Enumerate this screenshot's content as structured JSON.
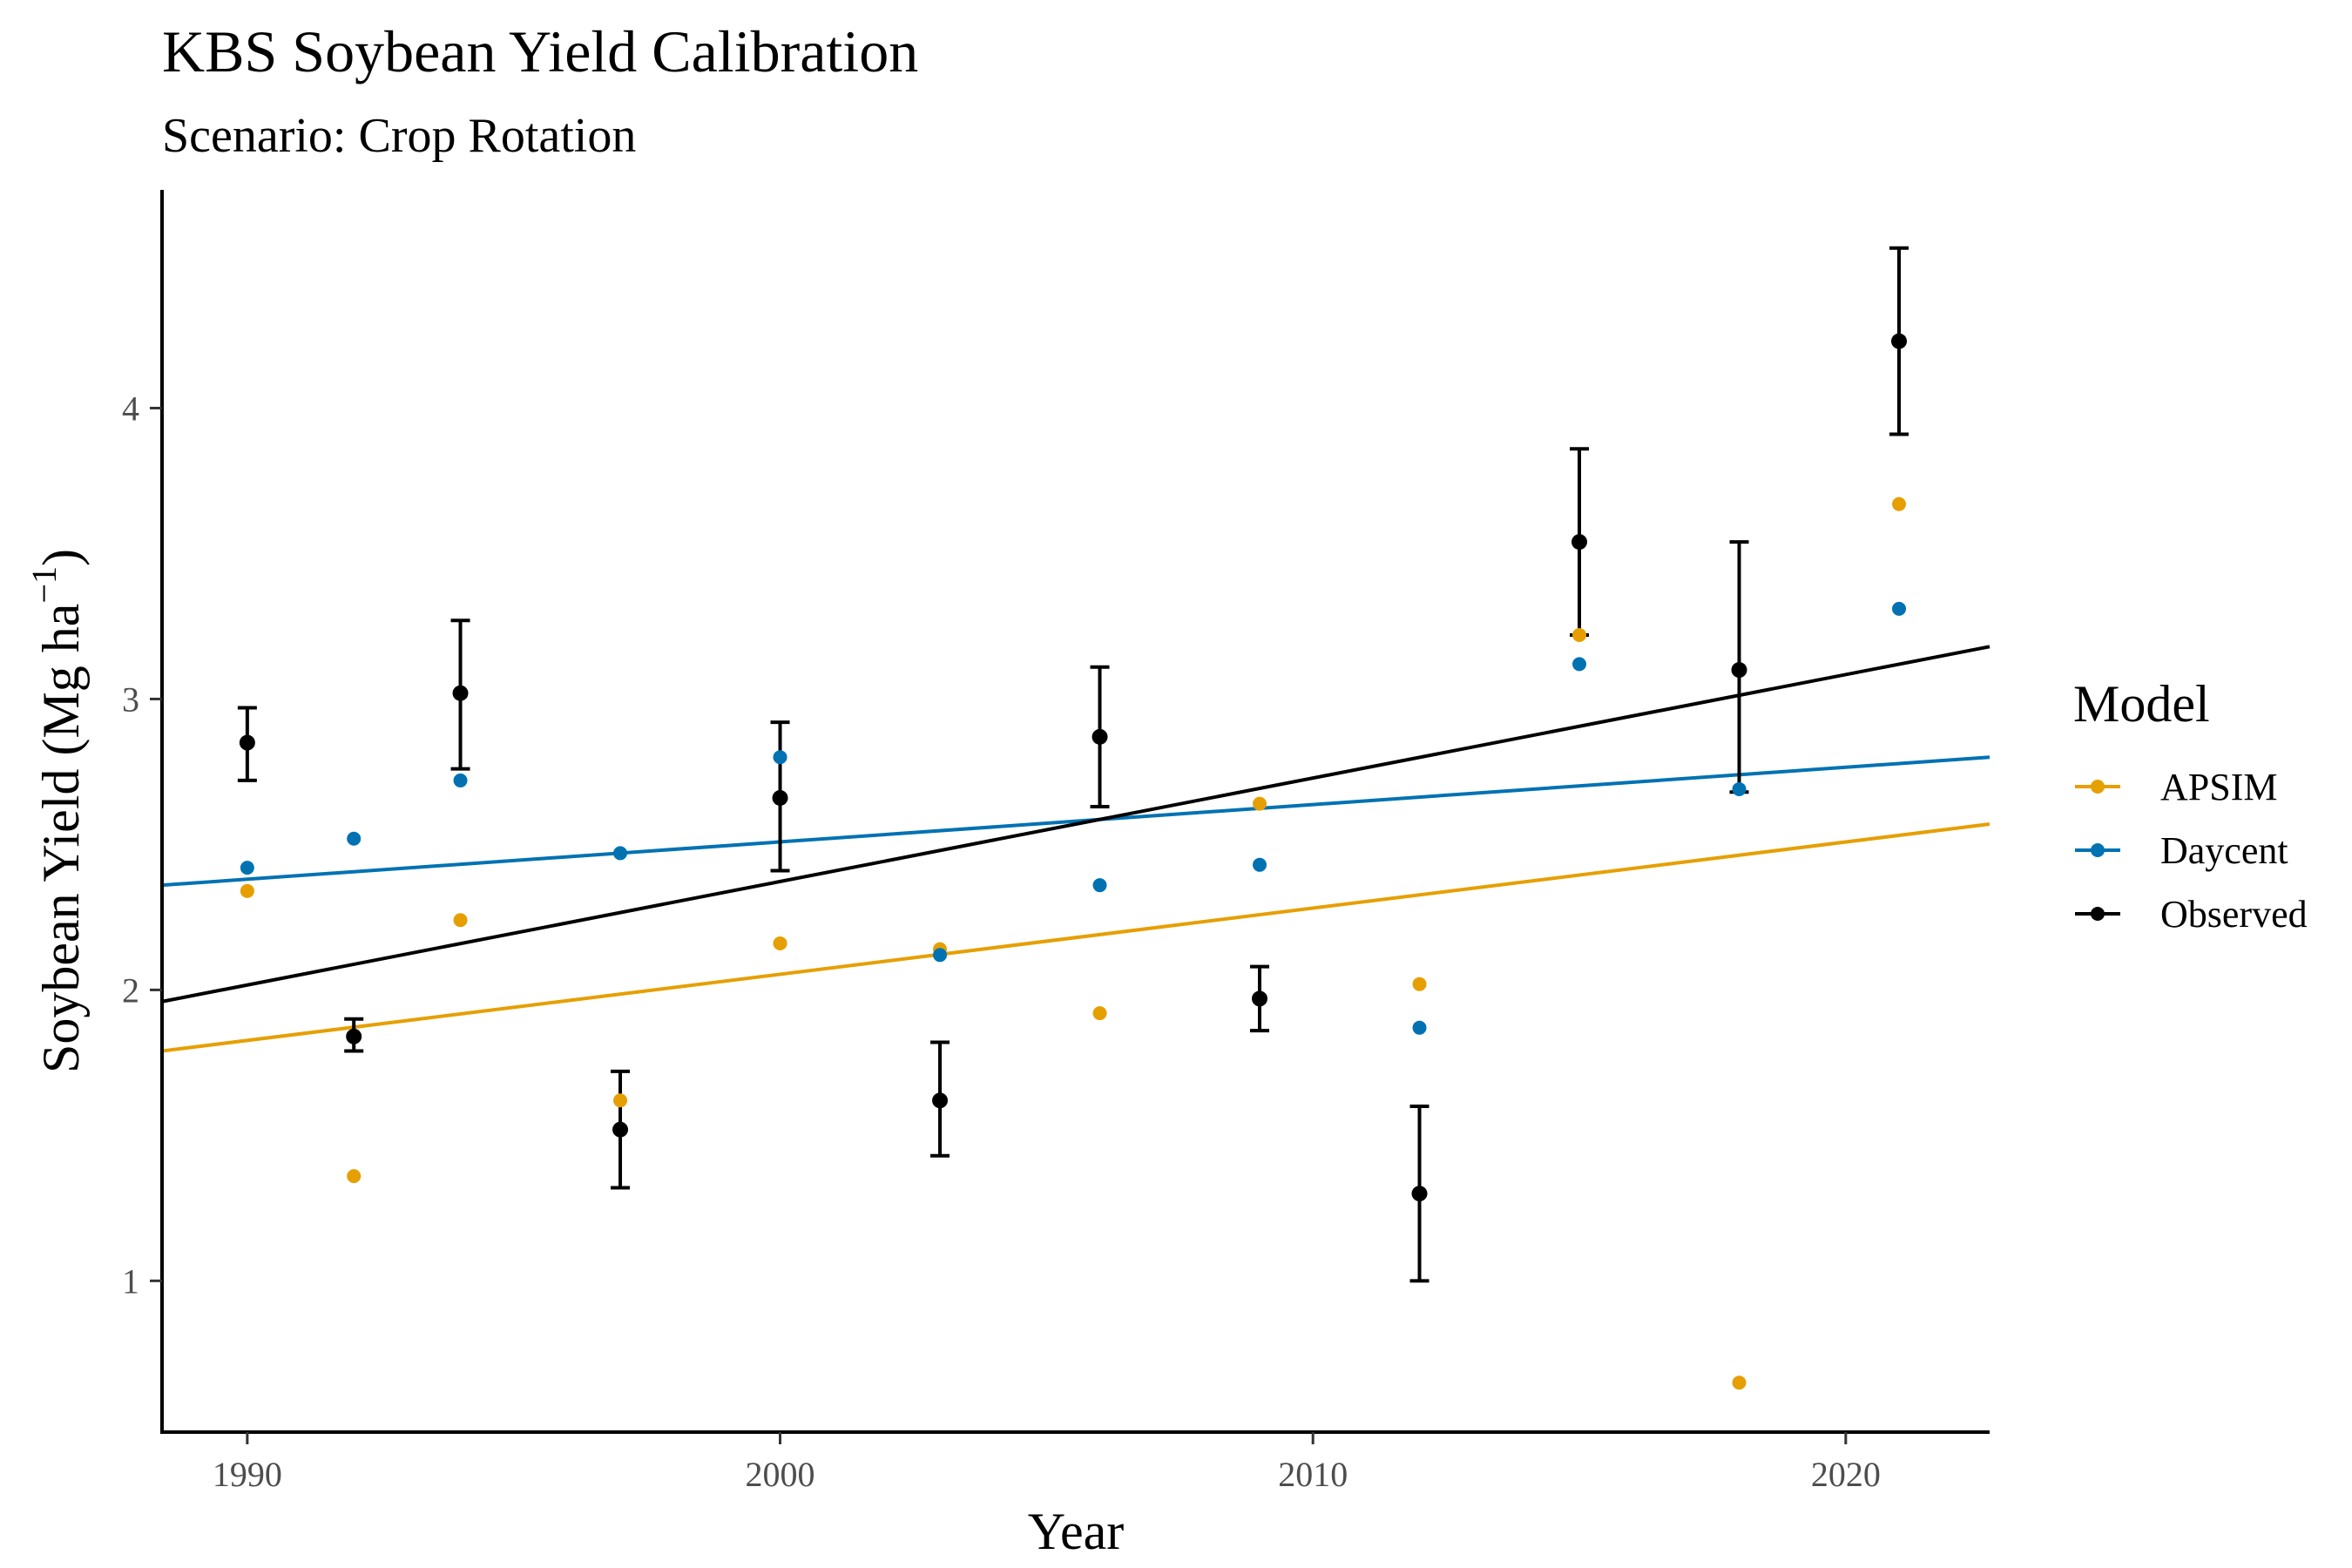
{
  "chart_data": {
    "type": "scatter",
    "title": "KBS Soybean Yield Calibration",
    "subtitle": "Scenario: Crop Rotation",
    "xlabel": "Year",
    "ylabel": "Soybean Yield (Mg ha",
    "ylabel_superscript": "−1",
    "ylabel_close": ")",
    "xlim": [
      1988.4,
      2022.7
    ],
    "ylim": [
      0.48,
      4.75
    ],
    "x_ticks": [
      1990,
      2000,
      2010,
      2020
    ],
    "y_ticks": [
      1,
      2,
      3,
      4
    ],
    "grid": false,
    "legend": {
      "title": "Model",
      "position": "right",
      "entries": [
        "APSIM",
        "Daycent",
        "Observed"
      ]
    },
    "series": [
      {
        "name": "APSIM",
        "color": "#E69F00",
        "points": [
          {
            "x": 1990,
            "y": 2.34
          },
          {
            "x": 1992,
            "y": 1.36
          },
          {
            "x": 1994,
            "y": 2.24
          },
          {
            "x": 1997,
            "y": 1.62
          },
          {
            "x": 2000,
            "y": 2.16
          },
          {
            "x": 2003,
            "y": 2.14
          },
          {
            "x": 2006,
            "y": 1.92
          },
          {
            "x": 2009,
            "y": 2.64
          },
          {
            "x": 2012,
            "y": 2.02
          },
          {
            "x": 2015,
            "y": 3.22
          },
          {
            "x": 2018,
            "y": 0.65
          },
          {
            "x": 2021,
            "y": 3.67
          }
        ],
        "trend": {
          "x": [
            1988.4,
            2022.7
          ],
          "y": [
            1.79,
            2.57
          ]
        }
      },
      {
        "name": "Daycent",
        "color": "#0072B2",
        "points": [
          {
            "x": 1990,
            "y": 2.42
          },
          {
            "x": 1992,
            "y": 2.52
          },
          {
            "x": 1994,
            "y": 2.72
          },
          {
            "x": 1997,
            "y": 2.47
          },
          {
            "x": 2000,
            "y": 2.8
          },
          {
            "x": 2003,
            "y": 2.12
          },
          {
            "x": 2006,
            "y": 2.36
          },
          {
            "x": 2009,
            "y": 2.43
          },
          {
            "x": 2012,
            "y": 1.87
          },
          {
            "x": 2015,
            "y": 3.12
          },
          {
            "x": 2018,
            "y": 2.69
          },
          {
            "x": 2021,
            "y": 3.31
          }
        ],
        "trend": {
          "x": [
            1988.4,
            2022.7
          ],
          "y": [
            2.36,
            2.8
          ]
        }
      },
      {
        "name": "Observed",
        "color": "#000000",
        "points": [
          {
            "x": 1990,
            "y": 2.85,
            "lo": 2.72,
            "hi": 2.97
          },
          {
            "x": 1992,
            "y": 1.84,
            "lo": 1.79,
            "hi": 1.9
          },
          {
            "x": 1994,
            "y": 3.02,
            "lo": 2.76,
            "hi": 3.27
          },
          {
            "x": 1997,
            "y": 1.52,
            "lo": 1.32,
            "hi": 1.72
          },
          {
            "x": 2000,
            "y": 2.66,
            "lo": 2.41,
            "hi": 2.92
          },
          {
            "x": 2003,
            "y": 1.62,
            "lo": 1.43,
            "hi": 1.82
          },
          {
            "x": 2006,
            "y": 2.87,
            "lo": 2.63,
            "hi": 3.11
          },
          {
            "x": 2009,
            "y": 1.97,
            "lo": 1.86,
            "hi": 2.08
          },
          {
            "x": 2012,
            "y": 1.3,
            "lo": 1.0,
            "hi": 1.6
          },
          {
            "x": 2015,
            "y": 3.54,
            "lo": 3.22,
            "hi": 3.86
          },
          {
            "x": 2018,
            "y": 3.1,
            "lo": 2.68,
            "hi": 3.54
          },
          {
            "x": 2021,
            "y": 4.23,
            "lo": 3.91,
            "hi": 4.55
          }
        ],
        "trend": {
          "x": [
            1988.4,
            2022.7
          ],
          "y": [
            1.96,
            3.18
          ]
        }
      }
    ]
  }
}
